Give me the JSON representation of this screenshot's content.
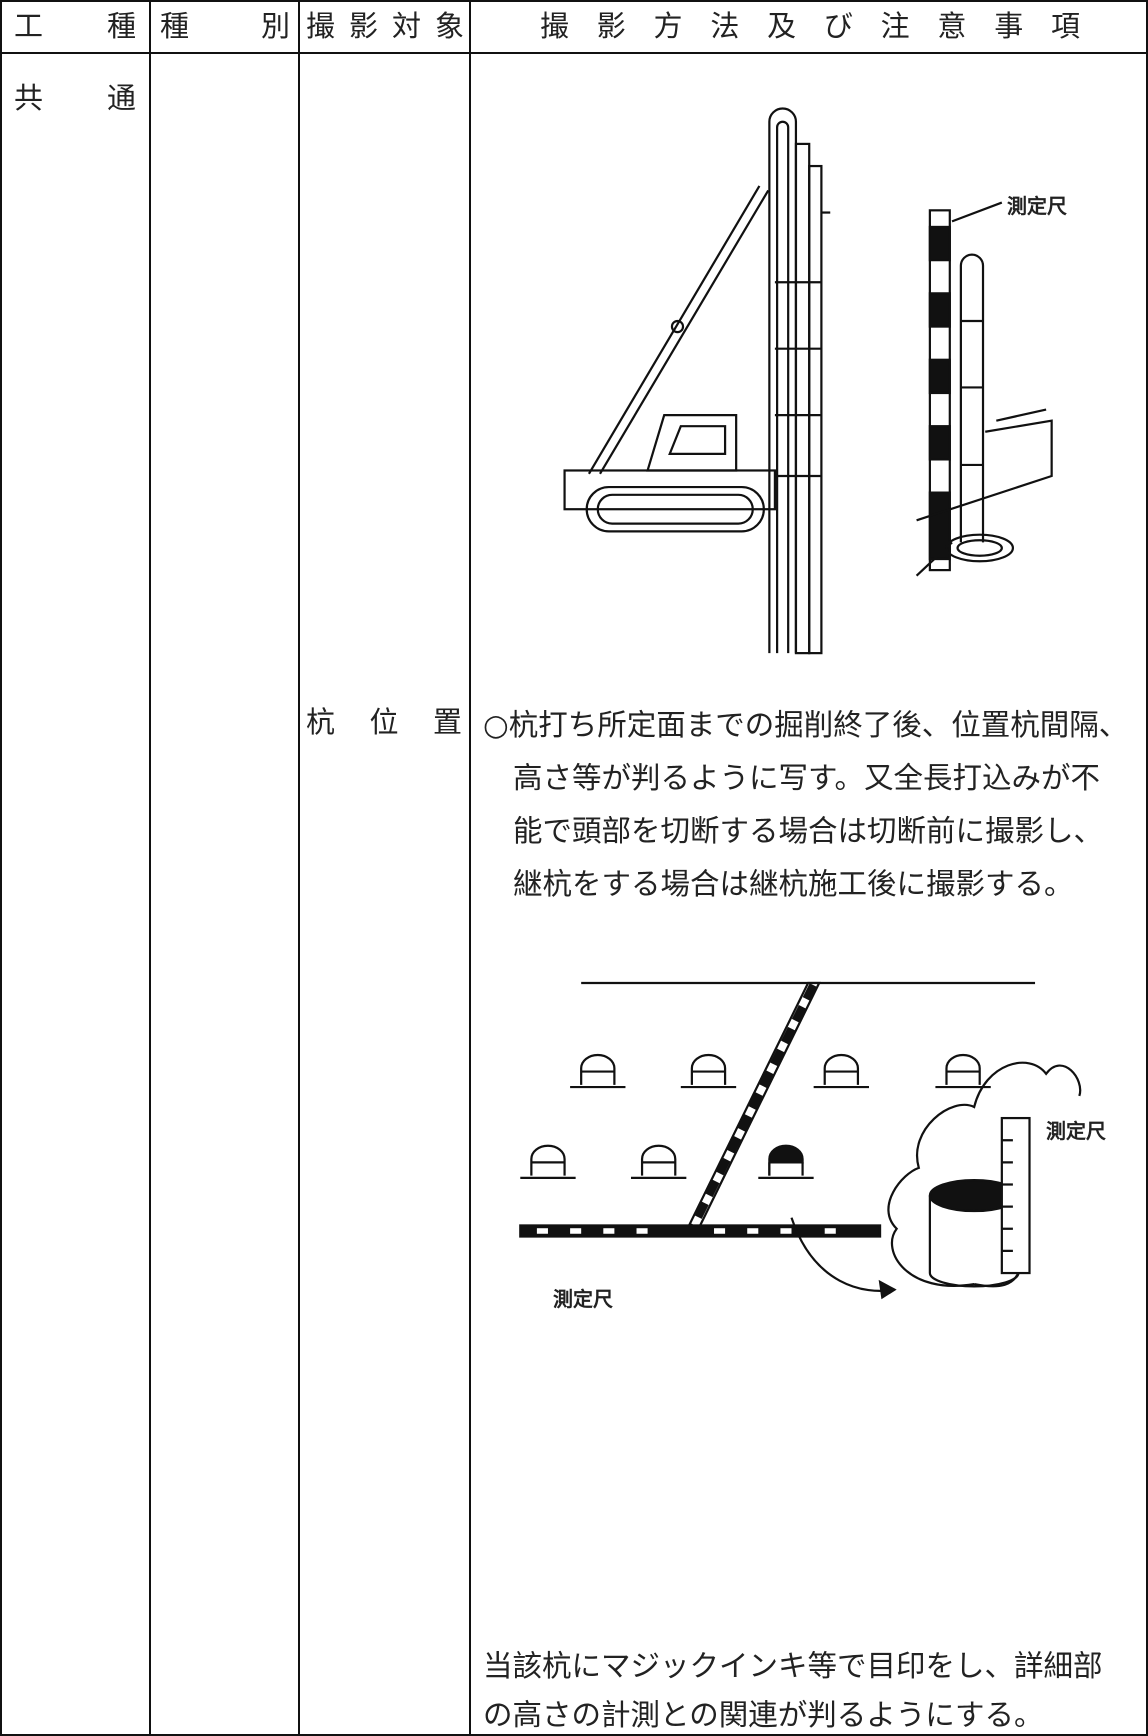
{
  "table": {
    "header": [
      "工種",
      "種別",
      "撮影対象",
      "撮影方法及び注意事項"
    ],
    "rows": [
      [
        "共通",
        "",
        "杭位置",
        ""
      ]
    ]
  },
  "figure_1": {
    "label": "測定尺"
  },
  "notes": {
    "lines": [
      "○杭打ち所定面までの掘削終了後、位置杭間隔、",
      "高さ等が判るように写す。又全長打込みが不",
      "能で頭部を切断する場合は切断前に撮影し、",
      "継杭をする場合は継杭施工後に撮影する。"
    ]
  },
  "figure_2": {
    "labels": [
      "測定尺",
      "測定尺"
    ]
  },
  "footer_note": {
    "lines": [
      "当該杭にマジックインキ等で目印をし、詳細部",
      "の高さの計測との関連が判るようにする。"
    ]
  }
}
